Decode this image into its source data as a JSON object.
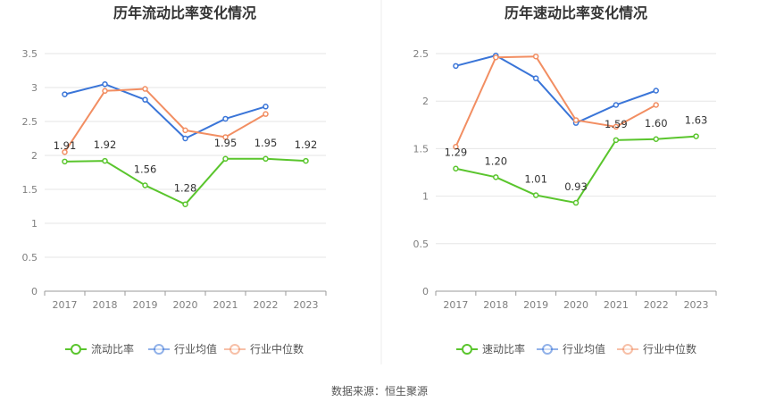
{
  "source": "数据来源：恒生聚源",
  "colors": {
    "company": "#5ac52d",
    "avg": "#3a75d8",
    "median": "#f28e62",
    "grid": "#e6e6e6",
    "axis": "#999999"
  },
  "chart_data": [
    {
      "type": "line",
      "title": "历年流动比率变化情况",
      "x": [
        "2017",
        "2018",
        "2019",
        "2020",
        "2021",
        "2022",
        "2023"
      ],
      "ylim": [
        0,
        3.5
      ],
      "yticks": [
        "0",
        "0.5",
        "1",
        "1.5",
        "2",
        "2.5",
        "3",
        "3.5"
      ],
      "grid": true,
      "legend_position": "bottom",
      "series": [
        {
          "name": "流动比率",
          "color_key": "company",
          "values": [
            1.91,
            1.92,
            1.56,
            1.28,
            1.95,
            1.95,
            1.92
          ],
          "labels": [
            "1.91",
            "1.92",
            "1.56",
            "1.28",
            "1.95",
            "1.95",
            "1.92"
          ]
        },
        {
          "name": "行业均值",
          "color_key": "avg",
          "values": [
            2.9,
            3.05,
            2.82,
            2.25,
            2.54,
            2.72,
            null
          ]
        },
        {
          "name": "行业中位数",
          "color_key": "median",
          "values": [
            2.05,
            2.95,
            2.98,
            2.37,
            2.27,
            2.61,
            null
          ]
        }
      ]
    },
    {
      "type": "line",
      "title": "历年速动比率变化情况",
      "x": [
        "2017",
        "2018",
        "2019",
        "2020",
        "2021",
        "2022",
        "2023"
      ],
      "ylim": [
        0,
        2.5
      ],
      "yticks": [
        "0",
        "0.5",
        "1",
        "1.5",
        "2",
        "2.5"
      ],
      "grid": true,
      "legend_position": "bottom",
      "series": [
        {
          "name": "速动比率",
          "color_key": "company",
          "values": [
            1.29,
            1.2,
            1.01,
            0.93,
            1.59,
            1.6,
            1.63
          ],
          "labels": [
            "1.29",
            "1.20",
            "1.01",
            "0.93",
            "1.59",
            "1.60",
            "1.63"
          ]
        },
        {
          "name": "行业均值",
          "color_key": "avg",
          "values": [
            2.37,
            2.48,
            2.24,
            1.77,
            1.96,
            2.11,
            null
          ]
        },
        {
          "name": "行业中位数",
          "color_key": "median",
          "values": [
            1.52,
            2.46,
            2.47,
            1.8,
            1.73,
            1.96,
            null
          ]
        }
      ]
    }
  ]
}
